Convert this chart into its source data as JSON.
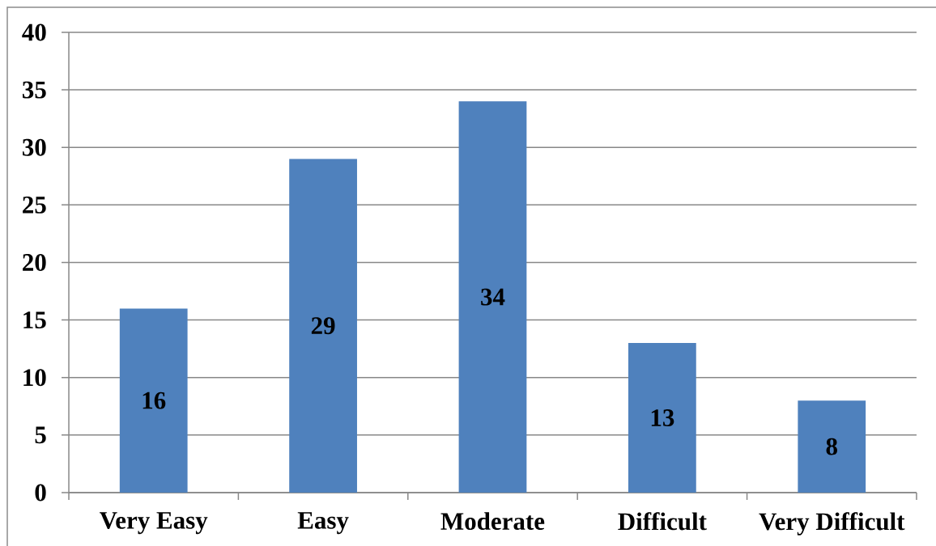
{
  "chart_data": {
    "type": "bar",
    "categories": [
      "Very Easy",
      "Easy",
      "Moderate",
      "Difficult",
      "Very Difficult"
    ],
    "values": [
      16,
      29,
      34,
      13,
      8
    ],
    "color": "#4f81bd",
    "ylim": [
      0,
      40
    ],
    "yticks": [
      0,
      5,
      10,
      15,
      20,
      25,
      30,
      35,
      40
    ],
    "grid": "y",
    "data_labels": true
  }
}
